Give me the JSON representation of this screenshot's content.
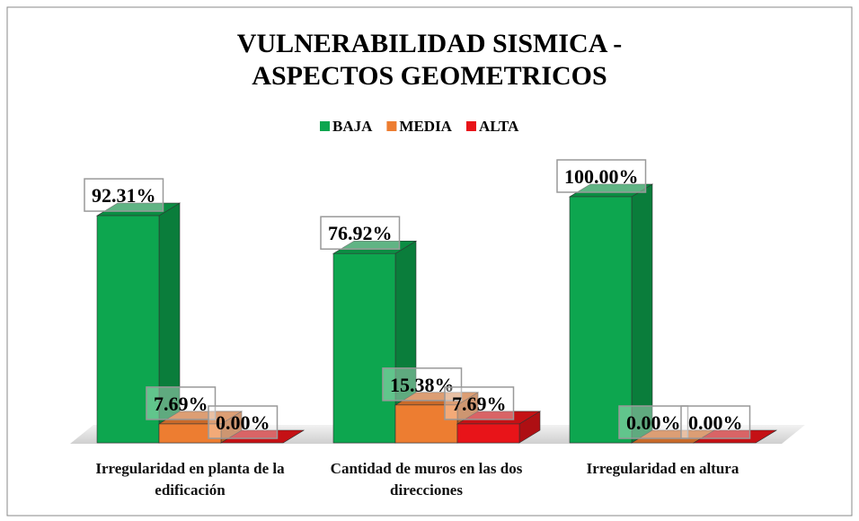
{
  "chart_data": {
    "type": "bar3d",
    "title": "VULNERABILIDAD SISMICA - ASPECTOS GEOMETRICOS",
    "categories": [
      "Irregularidad en planta de la edificación",
      "Cantidad de muros en las dos direcciones",
      "Irregularidad en altura"
    ],
    "series": [
      {
        "name": "BAJA",
        "color": "#0da64f",
        "values": [
          92.31,
          76.92,
          100
        ],
        "value_labels": [
          "92.31%",
          "76.92%",
          "100.00%"
        ]
      },
      {
        "name": "MEDIA",
        "color": "#ed7d31",
        "values": [
          7.69,
          15.38,
          0
        ],
        "value_labels": [
          "7.69%",
          "15.38%",
          "0.00%"
        ]
      },
      {
        "name": "ALTA",
        "color": "#e81419",
        "values": [
          0,
          7.69,
          0
        ],
        "value_labels": [
          "0.00%",
          "7.69%",
          "0.00%"
        ]
      }
    ],
    "legend": "top"
  }
}
